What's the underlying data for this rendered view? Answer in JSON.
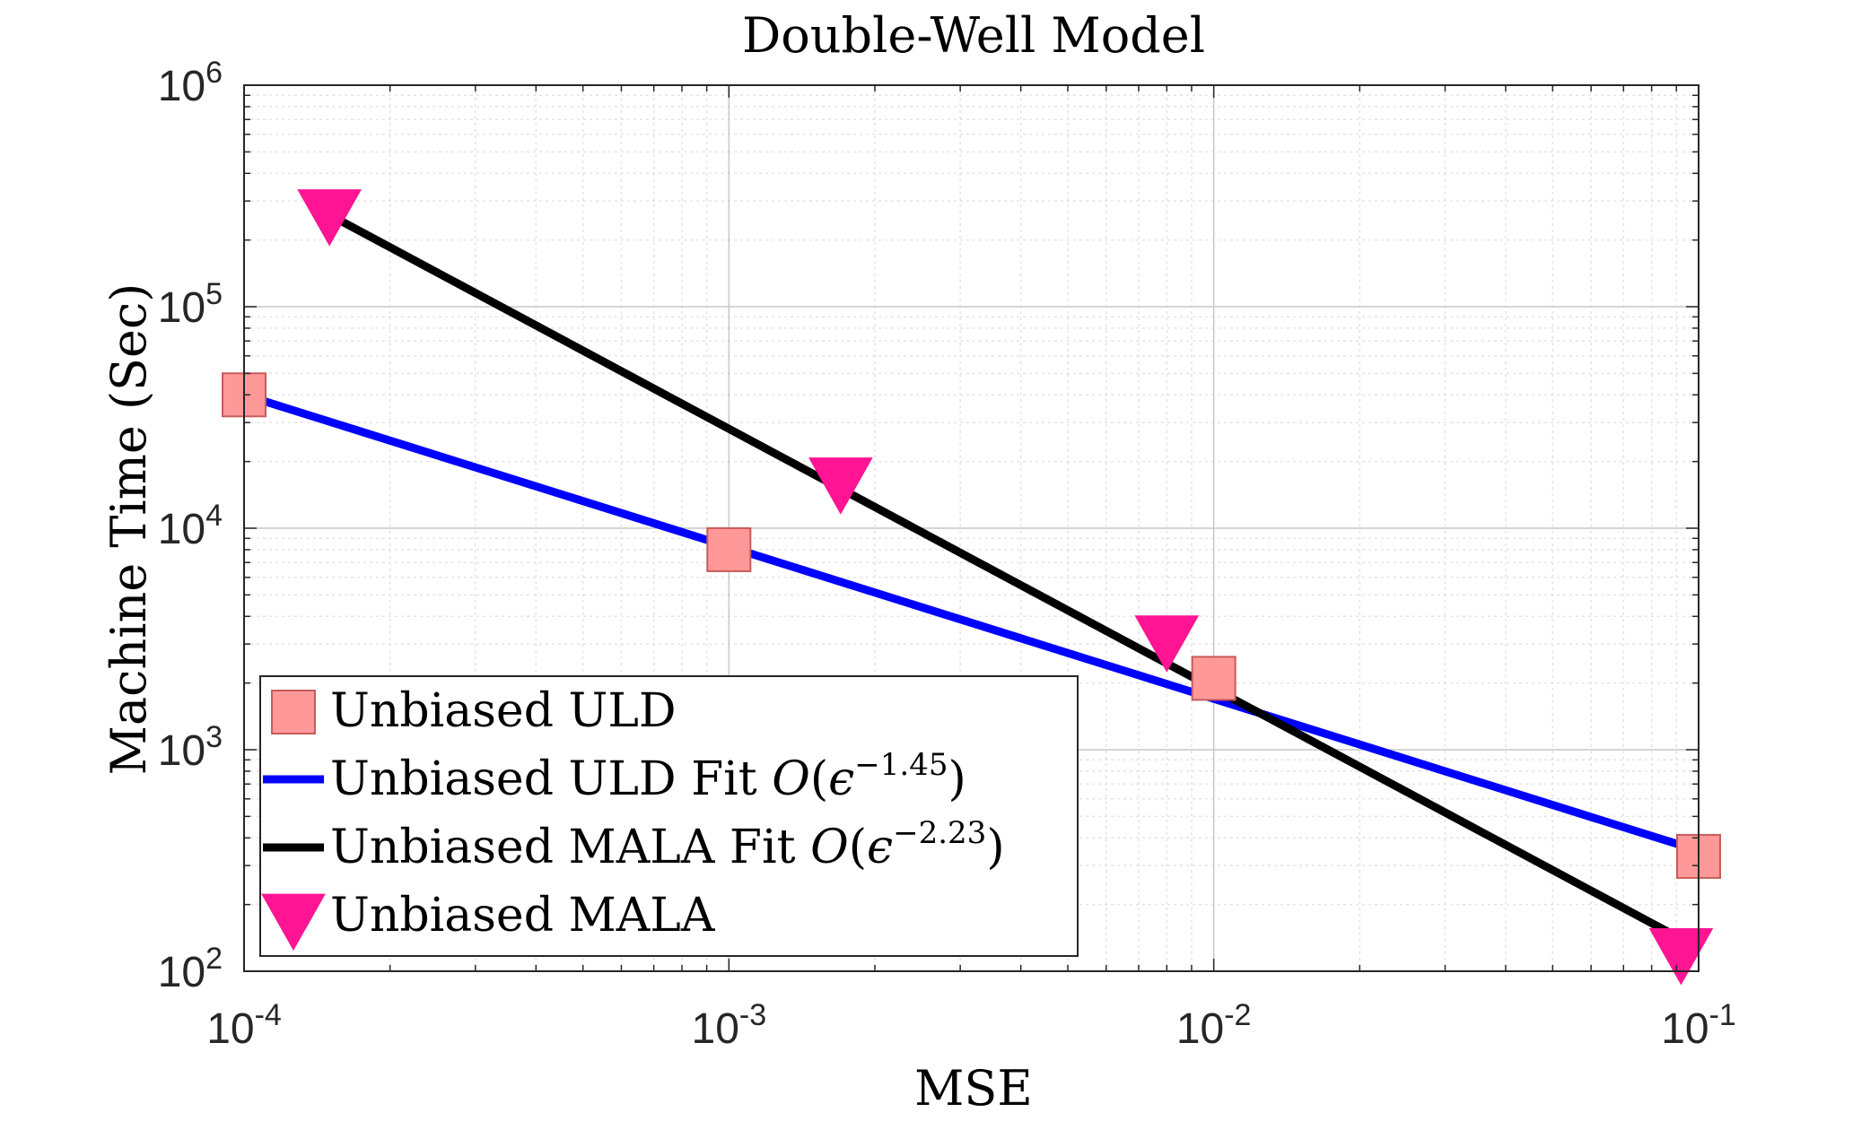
{
  "chart_data": {
    "type": "line",
    "title": "Double-Well Model",
    "xlabel": "MSE",
    "ylabel": "Machine Time (Sec)",
    "x_scale": "log",
    "y_scale": "log",
    "xlim": [
      0.0001,
      0.1
    ],
    "ylim": [
      100,
      1000000
    ],
    "grid": true,
    "minor_grid": true,
    "x_ticks": [
      {
        "value": 0.0001,
        "base": "10",
        "exp": "-4"
      },
      {
        "value": 0.001,
        "base": "10",
        "exp": "-3"
      },
      {
        "value": 0.01,
        "base": "10",
        "exp": "-2"
      },
      {
        "value": 0.1,
        "base": "10",
        "exp": "-1"
      }
    ],
    "y_ticks": [
      {
        "value": 100,
        "base": "10",
        "exp": "2"
      },
      {
        "value": 1000,
        "base": "10",
        "exp": "3"
      },
      {
        "value": 10000,
        "base": "10",
        "exp": "4"
      },
      {
        "value": 100000,
        "base": "10",
        "exp": "5"
      },
      {
        "value": 1000000,
        "base": "10",
        "exp": "6"
      }
    ],
    "legend_position": "bottom-left",
    "series": [
      {
        "name": "Unbiased ULD",
        "kind": "markers",
        "marker": "square",
        "color": "#FF9999",
        "edge_color": "#C85A5A",
        "points": [
          [
            0.0001,
            40000
          ],
          [
            0.001,
            8000
          ],
          [
            0.01,
            2100
          ],
          [
            0.1,
            330
          ]
        ]
      },
      {
        "name": "Unbiased ULD Fit",
        "legend_prefix": "Unbiased ULD Fit ",
        "legend_big_o": "O",
        "legend_open_paren": "(",
        "legend_epsilon": "ϵ",
        "legend_exponent": "−1.45",
        "legend_close_paren": ")",
        "kind": "line",
        "color": "#0000FF",
        "points": [
          [
            0.0001,
            40000
          ],
          [
            0.1,
            350
          ]
        ]
      },
      {
        "name": "Unbiased MALA Fit",
        "legend_prefix": "Unbiased MALA Fit ",
        "legend_big_o": "O",
        "legend_open_paren": "(",
        "legend_epsilon": "ϵ",
        "legend_exponent": "−2.23",
        "legend_close_paren": ")",
        "kind": "line",
        "color": "#000000",
        "points": [
          [
            0.00015,
            260000
          ],
          [
            0.092,
            140
          ]
        ]
      },
      {
        "name": "Unbiased MALA",
        "kind": "markers",
        "marker": "triangle-down",
        "color": "#FF1493",
        "points": [
          [
            0.00015,
            260000
          ],
          [
            0.0017,
            16000
          ],
          [
            0.008,
            3100
          ],
          [
            0.092,
            120
          ]
        ]
      }
    ]
  }
}
